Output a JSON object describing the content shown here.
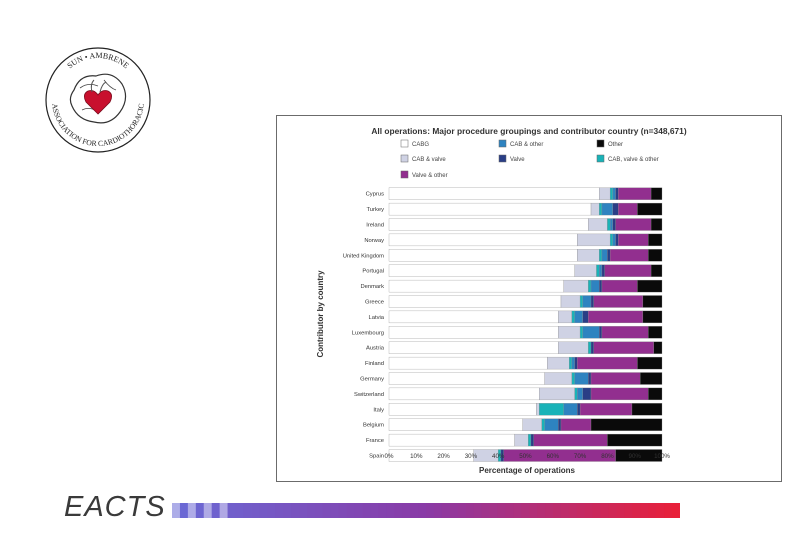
{
  "logo": {
    "text_top": "SUN • AMBRENE",
    "text_bottom": "ASSOCIATION FOR CARDIOTHORACIC"
  },
  "footer": {
    "brand": "EACTS"
  },
  "colors": {
    "cabg": "#ffffff",
    "cabg_valve": "#cfd2e4",
    "cabg_valve_other": "#19b3b8",
    "cabg_other": "#2e83c0",
    "valve": "#2a3e86",
    "valve_other": "#922f8f",
    "other": "#0a0a0a",
    "bar_gradient_start": "#6a6ad6",
    "bar_gradient_mid": "#8a3aa6",
    "bar_gradient_end": "#e8203a"
  },
  "chart_data": {
    "type": "bar",
    "orientation": "horizontal",
    "stacked": true,
    "title": "All operations: Major procedure groupings and contributor country (n=348,671)",
    "xlabel": "Percentage of operations",
    "ylabel": "Contributor by country",
    "xlim": [
      0,
      100
    ],
    "xticks": [
      "0%",
      "10%",
      "20%",
      "30%",
      "40%",
      "50%",
      "60%",
      "70%",
      "80%",
      "90%",
      "100%"
    ],
    "legend": [
      {
        "key": "cabg",
        "label": "CABG"
      },
      {
        "key": "cabg_other",
        "label": "CAB & other"
      },
      {
        "key": "other",
        "label": "Other"
      },
      {
        "key": "cabg_valve",
        "label": "CAB & valve"
      },
      {
        "key": "valve",
        "label": "Valve"
      },
      {
        "key": "cabg_valve_other",
        "label": "CAB, valve & other"
      },
      {
        "key": "valve_other",
        "label": "Valve & other"
      }
    ],
    "categories": [
      "Cyprus",
      "Turkey",
      "Ireland",
      "Norway",
      "United Kingdom",
      "Portugal",
      "Denmark",
      "Greece",
      "Latvia",
      "Luxembourg",
      "Austria",
      "Finland",
      "Germany",
      "Switzerland",
      "Italy",
      "Belgium",
      "France",
      "Spain"
    ],
    "series": [
      {
        "name": "CABG",
        "key": "cabg",
        "values": [
          77,
          74,
          73,
          69,
          69,
          68,
          64,
          63,
          62,
          62,
          62,
          58,
          57,
          55,
          54,
          49,
          46,
          31
        ]
      },
      {
        "name": "CAB & valve",
        "key": "cabg_valve",
        "values": [
          4,
          3,
          7,
          12,
          8,
          8,
          9,
          7,
          5,
          8,
          11,
          8,
          10,
          13,
          1,
          7,
          5,
          9
        ]
      },
      {
        "name": "CAB, valve & other",
        "key": "cabg_valve_other",
        "values": [
          1,
          1,
          1,
          1,
          1,
          1,
          1,
          1,
          1,
          1,
          1,
          1,
          1,
          1,
          9,
          1,
          1,
          1
        ]
      },
      {
        "name": "CAB & other",
        "key": "cabg_other",
        "values": [
          1,
          4,
          1,
          1,
          2,
          1,
          3,
          3,
          3,
          6,
          0,
          1,
          5,
          2,
          5,
          5,
          0,
          0
        ]
      },
      {
        "name": "Valve",
        "key": "valve",
        "values": [
          1,
          2,
          1,
          1,
          1,
          1,
          1,
          1,
          2,
          1,
          1,
          1,
          1,
          3,
          1,
          1,
          1,
          1
        ]
      },
      {
        "name": "Valve & other",
        "key": "valve_other",
        "values": [
          12,
          7,
          13,
          11,
          14,
          17,
          13,
          18,
          20,
          17,
          22,
          22,
          18,
          21,
          19,
          11,
          27,
          41
        ]
      },
      {
        "name": "Other",
        "key": "other",
        "values": [
          4,
          9,
          4,
          5,
          5,
          4,
          9,
          7,
          7,
          5,
          3,
          9,
          8,
          5,
          11,
          26,
          20,
          17
        ]
      }
    ]
  }
}
